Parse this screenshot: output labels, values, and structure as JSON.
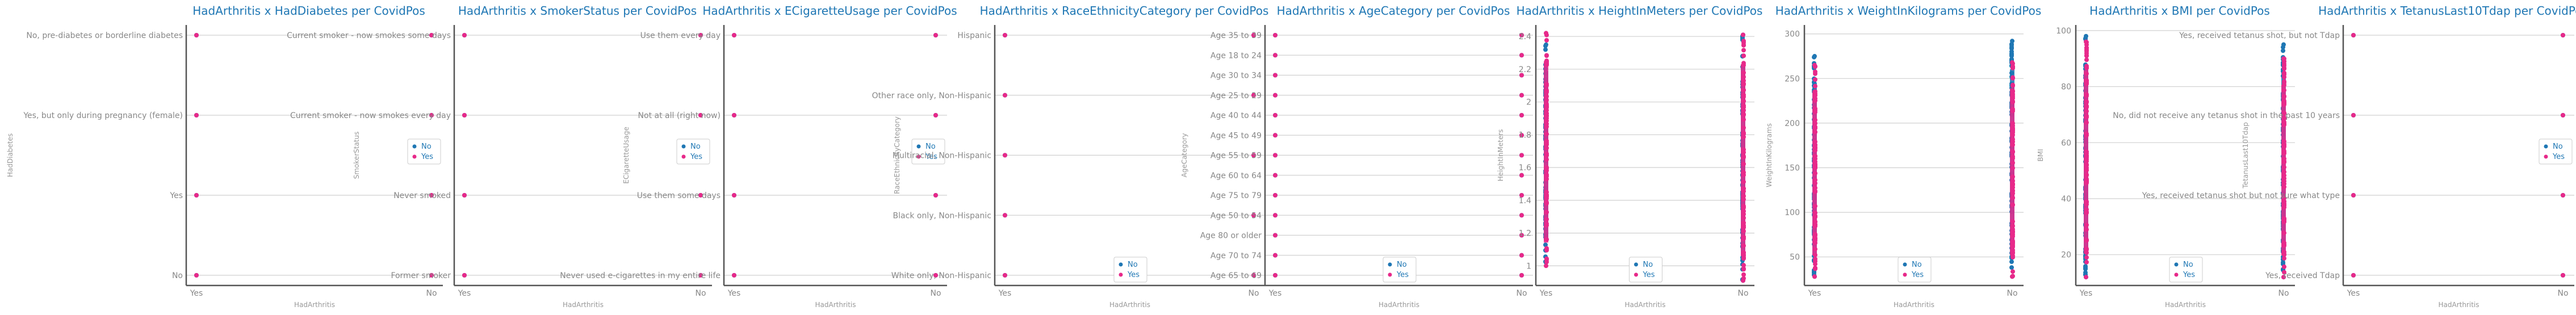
{
  "colors": {
    "No": "#1f77b4",
    "Yes": "#e7298a"
  },
  "chart_data": [
    {
      "type": "scatter",
      "title": "HadArthritis x HadDiabetes per CovidPos",
      "xlabel": "HadArthritis",
      "ylabel": "HadDiabetes",
      "x_categories": [
        "Yes",
        "No"
      ],
      "y_categories": [
        "No",
        "Yes",
        "Yes, but only during pregnancy (female)",
        "No, pre-diabetes or borderline diabetes"
      ],
      "series": [
        {
          "name": "No",
          "points": [
            [
              "Yes",
              "No"
            ],
            [
              "Yes",
              "Yes"
            ],
            [
              "Yes",
              "Yes, but only during pregnancy (female)"
            ],
            [
              "Yes",
              "No, pre-diabetes or borderline diabetes"
            ],
            [
              "No",
              "No"
            ],
            [
              "No",
              "Yes"
            ],
            [
              "No",
              "Yes, but only during pregnancy (female)"
            ],
            [
              "No",
              "No, pre-diabetes or borderline diabetes"
            ]
          ]
        },
        {
          "name": "Yes",
          "points": [
            [
              "Yes",
              "No"
            ],
            [
              "Yes",
              "Yes"
            ],
            [
              "Yes",
              "Yes, but only during pregnancy (female)"
            ],
            [
              "Yes",
              "No, pre-diabetes or borderline diabetes"
            ],
            [
              "No",
              "No"
            ],
            [
              "No",
              "Yes"
            ],
            [
              "No",
              "Yes, but only during pregnancy (female)"
            ],
            [
              "No",
              "No, pre-diabetes or borderline diabetes"
            ]
          ]
        }
      ],
      "legend": "center-right",
      "grid": true
    },
    {
      "type": "scatter",
      "title": "HadArthritis x SmokerStatus per CovidPos",
      "xlabel": "HadArthritis",
      "ylabel": "SmokerStatus",
      "x_categories": [
        "Yes",
        "No"
      ],
      "y_categories": [
        "Former smoker",
        "Never smoked",
        "Current smoker - now smokes every day",
        "Current smoker - now smokes some days"
      ],
      "series": [
        {
          "name": "No",
          "points": [
            [
              "Yes",
              "Former smoker"
            ],
            [
              "Yes",
              "Never smoked"
            ],
            [
              "Yes",
              "Current smoker - now smokes every day"
            ],
            [
              "Yes",
              "Current smoker - now smokes some days"
            ],
            [
              "No",
              "Former smoker"
            ],
            [
              "No",
              "Never smoked"
            ],
            [
              "No",
              "Current smoker - now smokes every day"
            ],
            [
              "No",
              "Current smoker - now smokes some days"
            ]
          ]
        },
        {
          "name": "Yes",
          "points": [
            [
              "Yes",
              "Former smoker"
            ],
            [
              "Yes",
              "Never smoked"
            ],
            [
              "Yes",
              "Current smoker - now smokes every day"
            ],
            [
              "Yes",
              "Current smoker - now smokes some days"
            ],
            [
              "No",
              "Former smoker"
            ],
            [
              "No",
              "Never smoked"
            ],
            [
              "No",
              "Current smoker - now smokes every day"
            ],
            [
              "No",
              "Current smoker - now smokes some days"
            ]
          ]
        }
      ],
      "legend": "center-right",
      "grid": true
    },
    {
      "type": "scatter",
      "title": "HadArthritis x ECigaretteUsage per CovidPos",
      "xlabel": "HadArthritis",
      "ylabel": "ECigaretteUsage",
      "x_categories": [
        "Yes",
        "No"
      ],
      "y_categories": [
        "Never used e-cigarettes in my entire life",
        "Use them some days",
        "Not at all (right now)",
        "Use them every day"
      ],
      "series": [
        {
          "name": "No",
          "points": [
            [
              "Yes",
              "Never used e-cigarettes in my entire life"
            ],
            [
              "Yes",
              "Use them some days"
            ],
            [
              "Yes",
              "Not at all (right now)"
            ],
            [
              "Yes",
              "Use them every day"
            ],
            [
              "No",
              "Never used e-cigarettes in my entire life"
            ],
            [
              "No",
              "Use them some days"
            ],
            [
              "No",
              "Not at all (right now)"
            ],
            [
              "No",
              "Use them every day"
            ]
          ]
        },
        {
          "name": "Yes",
          "points": [
            [
              "Yes",
              "Never used e-cigarettes in my entire life"
            ],
            [
              "Yes",
              "Use them some days"
            ],
            [
              "Yes",
              "Not at all (right now)"
            ],
            [
              "Yes",
              "Use them every day"
            ],
            [
              "No",
              "Never used e-cigarettes in my entire life"
            ],
            [
              "No",
              "Use them some days"
            ],
            [
              "No",
              "Not at all (right now)"
            ],
            [
              "No",
              "Use them every day"
            ]
          ]
        }
      ],
      "legend": "center-right",
      "grid": true
    },
    {
      "type": "scatter",
      "title": "HadArthritis x RaceEthnicityCategory per CovidPos",
      "xlabel": "HadArthritis",
      "ylabel": "RaceEthnicityCategory",
      "x_categories": [
        "Yes",
        "No"
      ],
      "y_categories": [
        "White only, Non-Hispanic",
        "Black only, Non-Hispanic",
        "Multiracial, Non-Hispanic",
        "Other race only, Non-Hispanic",
        "Hispanic"
      ],
      "series": [
        {
          "name": "No",
          "points": [
            [
              "Yes",
              "White only, Non-Hispanic"
            ],
            [
              "Yes",
              "Black only, Non-Hispanic"
            ],
            [
              "Yes",
              "Multiracial, Non-Hispanic"
            ],
            [
              "Yes",
              "Other race only, Non-Hispanic"
            ],
            [
              "Yes",
              "Hispanic"
            ],
            [
              "No",
              "White only, Non-Hispanic"
            ],
            [
              "No",
              "Black only, Non-Hispanic"
            ],
            [
              "No",
              "Multiracial, Non-Hispanic"
            ],
            [
              "No",
              "Other race only, Non-Hispanic"
            ],
            [
              "No",
              "Hispanic"
            ]
          ]
        },
        {
          "name": "Yes",
          "points": [
            [
              "Yes",
              "White only, Non-Hispanic"
            ],
            [
              "Yes",
              "Black only, Non-Hispanic"
            ],
            [
              "Yes",
              "Multiracial, Non-Hispanic"
            ],
            [
              "Yes",
              "Other race only, Non-Hispanic"
            ],
            [
              "Yes",
              "Hispanic"
            ],
            [
              "No",
              "White only, Non-Hispanic"
            ],
            [
              "No",
              "Black only, Non-Hispanic"
            ],
            [
              "No",
              "Multiracial, Non-Hispanic"
            ],
            [
              "No",
              "Other race only, Non-Hispanic"
            ],
            [
              "No",
              "Hispanic"
            ]
          ]
        }
      ],
      "legend": "lower-center",
      "grid": true
    },
    {
      "type": "scatter",
      "title": "HadArthritis x AgeCategory per CovidPos",
      "xlabel": "HadArthritis",
      "ylabel": "AgeCategory",
      "x_categories": [
        "Yes",
        "No"
      ],
      "y_categories": [
        "Age 65 to 69",
        "Age 70 to 74",
        "Age 80 or older",
        "Age 50 to 54",
        "Age 75 to 79",
        "Age 60 to 64",
        "Age 55 to 59",
        "Age 45 to 49",
        "Age 40 to 44",
        "Age 25 to 29",
        "Age 30 to 34",
        "Age 18 to 24",
        "Age 35 to 39"
      ],
      "series": [
        {
          "name": "No",
          "points": [
            [
              "Yes",
              "Age 65 to 69"
            ],
            [
              "Yes",
              "Age 70 to 74"
            ],
            [
              "Yes",
              "Age 80 or older"
            ],
            [
              "Yes",
              "Age 50 to 54"
            ],
            [
              "Yes",
              "Age 75 to 79"
            ],
            [
              "Yes",
              "Age 60 to 64"
            ],
            [
              "Yes",
              "Age 55 to 59"
            ],
            [
              "Yes",
              "Age 45 to 49"
            ],
            [
              "Yes",
              "Age 40 to 44"
            ],
            [
              "Yes",
              "Age 25 to 29"
            ],
            [
              "Yes",
              "Age 30 to 34"
            ],
            [
              "Yes",
              "Age 18 to 24"
            ],
            [
              "Yes",
              "Age 35 to 39"
            ],
            [
              "No",
              "Age 65 to 69"
            ],
            [
              "No",
              "Age 70 to 74"
            ],
            [
              "No",
              "Age 80 or older"
            ],
            [
              "No",
              "Age 50 to 54"
            ],
            [
              "No",
              "Age 75 to 79"
            ],
            [
              "No",
              "Age 60 to 64"
            ],
            [
              "No",
              "Age 55 to 59"
            ],
            [
              "No",
              "Age 45 to 49"
            ],
            [
              "No",
              "Age 40 to 44"
            ],
            [
              "No",
              "Age 25 to 29"
            ],
            [
              "No",
              "Age 30 to 34"
            ],
            [
              "No",
              "Age 18 to 24"
            ],
            [
              "No",
              "Age 35 to 39"
            ]
          ]
        },
        {
          "name": "Yes",
          "points": [
            [
              "Yes",
              "Age 65 to 69"
            ],
            [
              "Yes",
              "Age 70 to 74"
            ],
            [
              "Yes",
              "Age 80 or older"
            ],
            [
              "Yes",
              "Age 50 to 54"
            ],
            [
              "Yes",
              "Age 75 to 79"
            ],
            [
              "Yes",
              "Age 60 to 64"
            ],
            [
              "Yes",
              "Age 55 to 59"
            ],
            [
              "Yes",
              "Age 45 to 49"
            ],
            [
              "Yes",
              "Age 40 to 44"
            ],
            [
              "Yes",
              "Age 25 to 29"
            ],
            [
              "Yes",
              "Age 30 to 34"
            ],
            [
              "Yes",
              "Age 18 to 24"
            ],
            [
              "Yes",
              "Age 35 to 39"
            ],
            [
              "No",
              "Age 65 to 69"
            ],
            [
              "No",
              "Age 70 to 74"
            ],
            [
              "No",
              "Age 80 or older"
            ],
            [
              "No",
              "Age 50 to 54"
            ],
            [
              "No",
              "Age 75 to 79"
            ],
            [
              "No",
              "Age 60 to 64"
            ],
            [
              "No",
              "Age 55 to 59"
            ],
            [
              "No",
              "Age 45 to 49"
            ],
            [
              "No",
              "Age 40 to 44"
            ],
            [
              "No",
              "Age 25 to 29"
            ],
            [
              "No",
              "Age 30 to 34"
            ],
            [
              "No",
              "Age 18 to 24"
            ],
            [
              "No",
              "Age 35 to 39"
            ]
          ]
        }
      ],
      "legend": "lower-center",
      "grid": true
    },
    {
      "type": "scatter",
      "title": "HadArthritis x HeightInMeters per CovidPos",
      "xlabel": "HadArthritis",
      "ylabel": "HeightInMeters",
      "x_categories": [
        "Yes",
        "No"
      ],
      "y_ticks": [
        1.0,
        1.2,
        1.4,
        1.6,
        1.8,
        2.0,
        2.2,
        2.4
      ],
      "ylim": [
        0.88,
        2.47
      ],
      "series": [
        {
          "name": "No",
          "x_values": [
            "Yes",
            "No"
          ],
          "y_ranges": [
            [
              1.02,
              2.35
            ],
            [
              0.91,
              2.41
            ]
          ]
        },
        {
          "name": "Yes",
          "x_values": [
            "Yes",
            "No"
          ],
          "y_ranges": [
            [
              1.0,
              2.42
            ],
            [
              0.91,
              2.41
            ]
          ]
        }
      ],
      "legend": "lower-center",
      "grid": true
    },
    {
      "type": "scatter",
      "title": "HadArthritis x WeightInKilograms per CovidPos",
      "xlabel": "HadArthritis",
      "ylabel": "WeightInKilograms",
      "x_categories": [
        "Yes",
        "No"
      ],
      "y_ticks": [
        50,
        100,
        150,
        200,
        250,
        300
      ],
      "ylim": [
        18,
        310
      ],
      "series": [
        {
          "name": "No",
          "x_values": [
            "Yes",
            "No"
          ],
          "y_ranges": [
            [
              28,
              275
            ],
            [
              28,
              292
            ]
          ]
        },
        {
          "name": "Yes",
          "x_values": [
            "Yes",
            "No"
          ],
          "y_ranges": [
            [
              28,
              265
            ],
            [
              28,
              268
            ]
          ]
        }
      ],
      "legend": "lower-center",
      "grid": true
    },
    {
      "type": "scatter",
      "title": "HadArthritis x BMI per CovidPos",
      "xlabel": "HadArthritis",
      "ylabel": "BMI",
      "x_categories": [
        "Yes",
        "No"
      ],
      "y_ticks": [
        20,
        40,
        60,
        80,
        100
      ],
      "ylim": [
        9,
        102
      ],
      "series": [
        {
          "name": "No",
          "x_values": [
            "Yes",
            "No"
          ],
          "y_ranges": [
            [
              12,
              98
            ],
            [
              12,
              95
            ]
          ]
        },
        {
          "name": "Yes",
          "x_values": [
            "Yes",
            "No"
          ],
          "y_ranges": [
            [
              12,
              96
            ],
            [
              12,
              90
            ]
          ]
        }
      ],
      "legend": "lower-center",
      "grid": true
    },
    {
      "type": "scatter",
      "title": "HadArthritis x TetanusLast10Tdap per CovidPos",
      "xlabel": "HadArthritis",
      "ylabel": "TetanusLast10Tdap",
      "x_categories": [
        "Yes",
        "No"
      ],
      "y_categories": [
        "Yes, received Tdap",
        "Yes, received tetanus shot but not sure what type",
        "No, did not receive any tetanus shot in the past 10 years",
        "Yes, received tetanus shot, but not Tdap"
      ],
      "series": [
        {
          "name": "No",
          "points": [
            [
              "Yes",
              "Yes, received Tdap"
            ],
            [
              "Yes",
              "Yes, received tetanus shot but not sure what type"
            ],
            [
              "Yes",
              "No, did not receive any tetanus shot in the past 10 years"
            ],
            [
              "Yes",
              "Yes, received tetanus shot, but not Tdap"
            ],
            [
              "No",
              "Yes, received Tdap"
            ],
            [
              "No",
              "Yes, received tetanus shot but not sure what type"
            ],
            [
              "No",
              "No, did not receive any tetanus shot in the past 10 years"
            ],
            [
              "No",
              "Yes, received tetanus shot, but not Tdap"
            ]
          ]
        },
        {
          "name": "Yes",
          "points": [
            [
              "Yes",
              "Yes, received Tdap"
            ],
            [
              "Yes",
              "Yes, received tetanus shot but not sure what type"
            ],
            [
              "Yes",
              "No, did not receive any tetanus shot in the past 10 years"
            ],
            [
              "Yes",
              "Yes, received tetanus shot, but not Tdap"
            ],
            [
              "No",
              "Yes, received Tdap"
            ],
            [
              "No",
              "Yes, received tetanus shot but not sure what type"
            ],
            [
              "No",
              "No, did not receive any tetanus shot in the past 10 years"
            ],
            [
              "No",
              "Yes, received tetanus shot, but not Tdap"
            ]
          ]
        }
      ],
      "legend": "center-right",
      "grid": true
    }
  ]
}
